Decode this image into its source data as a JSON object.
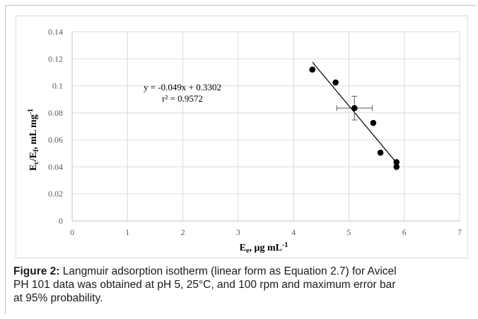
{
  "chart_data": {
    "type": "scatter",
    "xlim": [
      0,
      7
    ],
    "ylim": [
      0,
      0.14
    ],
    "x_ticks": [
      "0",
      "1",
      "2",
      "3",
      "4",
      "5",
      "6",
      "7"
    ],
    "y_ticks": [
      "0",
      "0.02",
      "0.04",
      "0.06",
      "0.08",
      "0.1",
      "0.12",
      "0.14"
    ],
    "x_tick_values": [
      0,
      1,
      2,
      3,
      4,
      5,
      6,
      7
    ],
    "y_tick_values": [
      0,
      0.02,
      0.04,
      0.06,
      0.08,
      0.1,
      0.12,
      0.14
    ],
    "grid": true,
    "points": [
      {
        "x": 4.34,
        "y": 0.112
      },
      {
        "x": 4.76,
        "y": 0.1025
      },
      {
        "x": 5.1,
        "y": 0.0835
      },
      {
        "x": 5.44,
        "y": 0.0725
      },
      {
        "x": 5.57,
        "y": 0.0505
      },
      {
        "x": 5.86,
        "y": 0.0435
      },
      {
        "x": 5.86,
        "y": 0.04
      }
    ],
    "error_bar": {
      "x": 5.1,
      "y": 0.0835,
      "x_err": 0.32,
      "y_err": 0.0088
    },
    "trendline": {
      "slope": -0.049,
      "intercept": 0.3302,
      "x_start": 4.34,
      "x_end": 5.88
    },
    "equation": "y = -0.049x + 0.3302",
    "r_squared": "r² = 0.9572",
    "xlabel_main": "E",
    "xlabel_sub": "e",
    "xlabel_rest": ", µg mL",
    "xlabel_sup": "-1",
    "ylabel_main": "E",
    "ylabel_sub1": "c",
    "ylabel_slash": "/E",
    "ylabel_sub2": "f",
    "ylabel_rest": ",  mL mg",
    "ylabel_sup": "-1"
  },
  "caption": {
    "label": "Figure 2:",
    "line1": " Langmuir adsorption isotherm (linear form as Equation 2.7) for Avicel",
    "line2": "PH 101 data was obtained at pH 5, 25°C, and 100 rpm and maximum error bar",
    "line3": "at 95% probability."
  }
}
